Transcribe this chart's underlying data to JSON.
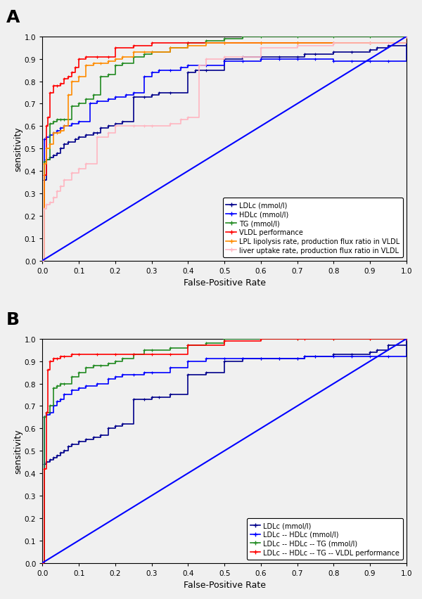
{
  "panel_A": {
    "title": "A",
    "xlabel": "False-Positive Rate",
    "ylabel": "sensitivity",
    "curves": {
      "LDLc": {
        "color": "#00008B",
        "marker": "+",
        "label": "LDLc (mmol/l)",
        "fpr": [
          0,
          0.005,
          0.01,
          0.02,
          0.03,
          0.04,
          0.05,
          0.06,
          0.07,
          0.09,
          0.1,
          0.12,
          0.14,
          0.15,
          0.16,
          0.18,
          0.2,
          0.22,
          0.25,
          0.28,
          0.3,
          0.32,
          0.35,
          0.4,
          0.42,
          0.45,
          0.5,
          0.55,
          0.6,
          0.65,
          0.7,
          0.72,
          0.75,
          0.8,
          0.85,
          0.9,
          0.92,
          0.95,
          1.0
        ],
        "tpr": [
          0,
          0.36,
          0.45,
          0.46,
          0.47,
          0.48,
          0.5,
          0.52,
          0.53,
          0.54,
          0.55,
          0.56,
          0.57,
          0.57,
          0.59,
          0.6,
          0.61,
          0.62,
          0.73,
          0.73,
          0.74,
          0.75,
          0.75,
          0.84,
          0.85,
          0.85,
          0.9,
          0.91,
          0.91,
          0.91,
          0.91,
          0.92,
          0.92,
          0.93,
          0.93,
          0.94,
          0.95,
          0.96,
          1.0
        ]
      },
      "HDLc": {
        "color": "#0000FF",
        "marker": "+",
        "label": "HDLc (mmol/l)",
        "fpr": [
          0,
          0.005,
          0.01,
          0.02,
          0.03,
          0.04,
          0.05,
          0.06,
          0.08,
          0.1,
          0.13,
          0.15,
          0.18,
          0.2,
          0.23,
          0.25,
          0.28,
          0.3,
          0.32,
          0.35,
          0.38,
          0.4,
          0.45,
          0.5,
          0.55,
          0.6,
          0.65,
          0.7,
          0.75,
          0.8,
          0.85,
          0.9,
          0.95,
          1.0
        ],
        "tpr": [
          0,
          0.54,
          0.55,
          0.56,
          0.57,
          0.58,
          0.59,
          0.6,
          0.61,
          0.62,
          0.7,
          0.71,
          0.72,
          0.73,
          0.74,
          0.75,
          0.82,
          0.84,
          0.85,
          0.85,
          0.86,
          0.87,
          0.87,
          0.89,
          0.89,
          0.9,
          0.9,
          0.9,
          0.9,
          0.89,
          0.89,
          0.89,
          0.89,
          1.0
        ]
      },
      "TG": {
        "color": "#228B22",
        "marker": "+",
        "label": "TG (mmol/l)",
        "fpr": [
          0,
          0.005,
          0.01,
          0.02,
          0.03,
          0.04,
          0.05,
          0.06,
          0.08,
          0.1,
          0.12,
          0.14,
          0.16,
          0.18,
          0.2,
          0.22,
          0.25,
          0.28,
          0.3,
          0.35,
          0.4,
          0.45,
          0.5,
          0.55,
          0.6,
          0.7,
          0.8,
          0.9,
          1.0
        ],
        "tpr": [
          0,
          0.44,
          0.45,
          0.61,
          0.62,
          0.63,
          0.63,
          0.63,
          0.69,
          0.7,
          0.72,
          0.74,
          0.82,
          0.83,
          0.87,
          0.88,
          0.91,
          0.92,
          0.93,
          0.95,
          0.97,
          0.98,
          0.99,
          1.0,
          1.0,
          1.0,
          1.0,
          1.0,
          1.0
        ]
      },
      "VLDL": {
        "color": "#FF0000",
        "marker": "+",
        "label": "VLDL performance",
        "fpr": [
          0,
          0.005,
          0.01,
          0.015,
          0.02,
          0.03,
          0.04,
          0.05,
          0.06,
          0.07,
          0.08,
          0.09,
          0.1,
          0.12,
          0.15,
          0.18,
          0.2,
          0.25,
          0.3,
          0.4,
          0.5,
          0.6,
          0.7,
          0.8,
          0.9,
          1.0
        ],
        "tpr": [
          0,
          0.38,
          0.6,
          0.64,
          0.75,
          0.78,
          0.78,
          0.79,
          0.81,
          0.82,
          0.84,
          0.86,
          0.9,
          0.91,
          0.91,
          0.91,
          0.95,
          0.96,
          0.97,
          0.97,
          0.97,
          0.97,
          0.97,
          0.97,
          0.97,
          1.0
        ]
      },
      "LPL": {
        "color": "#FF8C00",
        "marker": "+",
        "label": "LPL lipolysis rate, production flux ratio in VLDL",
        "fpr": [
          0,
          0.005,
          0.01,
          0.02,
          0.03,
          0.04,
          0.05,
          0.06,
          0.07,
          0.08,
          0.1,
          0.12,
          0.14,
          0.16,
          0.18,
          0.2,
          0.22,
          0.25,
          0.28,
          0.3,
          0.35,
          0.4,
          0.45,
          0.5,
          0.6,
          0.7,
          0.8,
          0.9,
          1.0
        ],
        "tpr": [
          0,
          0.43,
          0.5,
          0.52,
          0.57,
          0.57,
          0.58,
          0.6,
          0.74,
          0.8,
          0.82,
          0.87,
          0.88,
          0.88,
          0.89,
          0.9,
          0.91,
          0.93,
          0.93,
          0.93,
          0.95,
          0.96,
          0.97,
          0.97,
          0.97,
          0.97,
          0.97,
          0.97,
          1.0
        ]
      },
      "liver": {
        "color": "#FFB6C1",
        "marker": "+",
        "label": "liver uptake rate, production flux ratio in VLDL",
        "fpr": [
          0,
          0.005,
          0.01,
          0.02,
          0.03,
          0.04,
          0.05,
          0.06,
          0.08,
          0.1,
          0.12,
          0.15,
          0.18,
          0.2,
          0.25,
          0.28,
          0.3,
          0.35,
          0.38,
          0.4,
          0.43,
          0.45,
          0.5,
          0.55,
          0.6,
          0.7,
          0.8,
          0.9,
          0.95,
          1.0
        ],
        "tpr": [
          0,
          0.23,
          0.25,
          0.26,
          0.28,
          0.31,
          0.33,
          0.36,
          0.39,
          0.41,
          0.43,
          0.55,
          0.57,
          0.6,
          0.6,
          0.6,
          0.6,
          0.61,
          0.63,
          0.64,
          0.87,
          0.9,
          0.91,
          0.91,
          0.95,
          0.96,
          0.97,
          0.97,
          0.97,
          1.0
        ]
      },
      "diagonal": {
        "color": "#0000FF",
        "fpr": [
          0,
          1
        ],
        "tpr": [
          0,
          1
        ]
      }
    }
  },
  "panel_B": {
    "title": "B",
    "xlabel": "False-Positive Rate",
    "ylabel": "sensitivity",
    "curves": {
      "LDLc": {
        "color": "#00008B",
        "marker": "+",
        "label": "LDLc (mmol/l)",
        "fpr": [
          0,
          0.005,
          0.01,
          0.02,
          0.03,
          0.04,
          0.05,
          0.06,
          0.07,
          0.08,
          0.1,
          0.12,
          0.14,
          0.16,
          0.18,
          0.2,
          0.22,
          0.25,
          0.28,
          0.3,
          0.32,
          0.35,
          0.4,
          0.45,
          0.5,
          0.55,
          0.6,
          0.65,
          0.7,
          0.72,
          0.75,
          0.8,
          0.85,
          0.9,
          0.92,
          0.95,
          1.0
        ],
        "tpr": [
          0,
          0.44,
          0.45,
          0.46,
          0.47,
          0.48,
          0.49,
          0.5,
          0.52,
          0.53,
          0.54,
          0.55,
          0.56,
          0.57,
          0.6,
          0.61,
          0.62,
          0.73,
          0.73,
          0.74,
          0.74,
          0.75,
          0.84,
          0.85,
          0.9,
          0.91,
          0.91,
          0.91,
          0.91,
          0.92,
          0.92,
          0.93,
          0.93,
          0.94,
          0.95,
          0.97,
          1.0
        ]
      },
      "LDLc_HDLc": {
        "color": "#0000FF",
        "marker": "+",
        "label": "LDLc -- HDLc (mmol/l)",
        "fpr": [
          0,
          0.005,
          0.01,
          0.02,
          0.03,
          0.04,
          0.05,
          0.06,
          0.08,
          0.1,
          0.12,
          0.15,
          0.18,
          0.2,
          0.22,
          0.25,
          0.28,
          0.3,
          0.35,
          0.4,
          0.45,
          0.5,
          0.55,
          0.6,
          0.65,
          0.7,
          0.72,
          0.75,
          0.8,
          0.85,
          0.9,
          0.95,
          1.0
        ],
        "tpr": [
          0,
          0.65,
          0.66,
          0.67,
          0.7,
          0.72,
          0.73,
          0.75,
          0.77,
          0.78,
          0.79,
          0.8,
          0.82,
          0.83,
          0.84,
          0.84,
          0.85,
          0.85,
          0.87,
          0.9,
          0.91,
          0.91,
          0.91,
          0.91,
          0.91,
          0.91,
          0.92,
          0.92,
          0.92,
          0.92,
          0.92,
          0.92,
          1.0
        ]
      },
      "LDLc_HDLc_TG": {
        "color": "#228B22",
        "marker": "+",
        "label": "LDLc -- HDLc -- TG (mmol/l)",
        "fpr": [
          0,
          0.005,
          0.01,
          0.02,
          0.03,
          0.04,
          0.05,
          0.06,
          0.08,
          0.1,
          0.12,
          0.14,
          0.16,
          0.18,
          0.2,
          0.22,
          0.25,
          0.28,
          0.3,
          0.35,
          0.4,
          0.45,
          0.5,
          0.6,
          0.7,
          0.8,
          0.9,
          1.0
        ],
        "tpr": [
          0,
          0.65,
          0.67,
          0.7,
          0.78,
          0.79,
          0.8,
          0.8,
          0.83,
          0.85,
          0.87,
          0.88,
          0.88,
          0.89,
          0.9,
          0.91,
          0.93,
          0.95,
          0.95,
          0.96,
          0.97,
          0.98,
          1.0,
          1.0,
          1.0,
          1.0,
          1.0,
          1.0
        ]
      },
      "LDLc_HDLc_TG_VLDL": {
        "color": "#FF0000",
        "marker": "+",
        "label": "LDLc -- HDLc -- TG -- VLDL performance",
        "fpr": [
          0,
          0.005,
          0.01,
          0.015,
          0.02,
          0.03,
          0.04,
          0.05,
          0.06,
          0.08,
          0.1,
          0.15,
          0.2,
          0.25,
          0.3,
          0.35,
          0.4,
          0.5,
          0.6,
          0.7,
          0.72,
          0.8,
          0.9,
          1.0
        ],
        "tpr": [
          0,
          0.42,
          0.67,
          0.86,
          0.9,
          0.91,
          0.91,
          0.92,
          0.92,
          0.93,
          0.93,
          0.93,
          0.93,
          0.93,
          0.93,
          0.93,
          0.97,
          0.99,
          1.0,
          1.0,
          1.0,
          1.0,
          1.0,
          1.0
        ]
      },
      "diagonal": {
        "color": "#0000FF",
        "fpr": [
          0,
          1
        ],
        "tpr": [
          0,
          1
        ]
      }
    }
  },
  "bg_color": "#f0f0f0",
  "fig_bg": "#f0f0f0"
}
